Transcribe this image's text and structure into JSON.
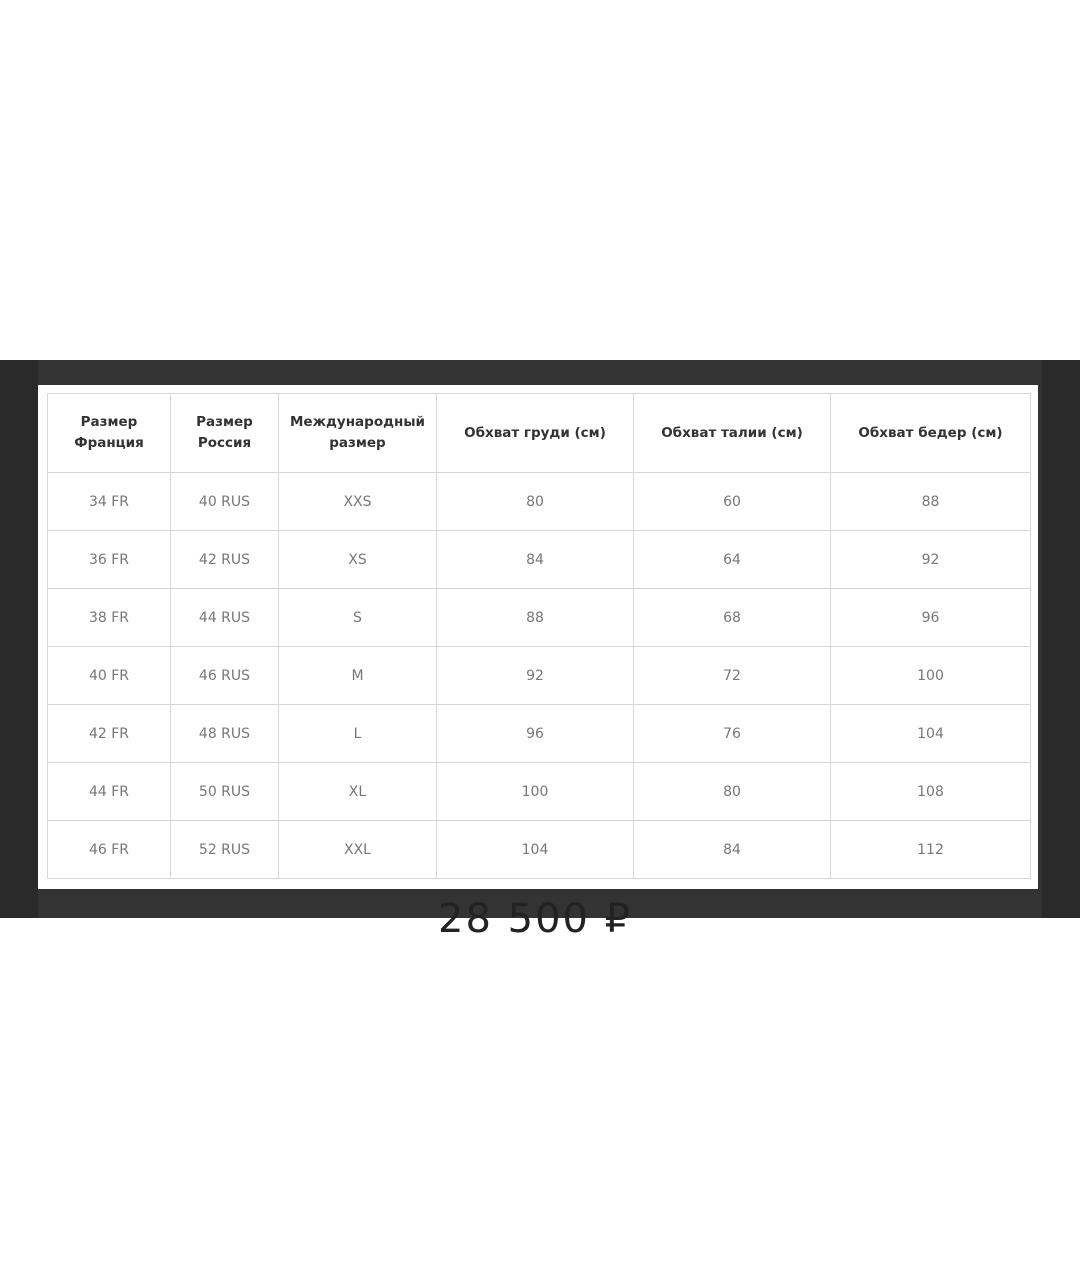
{
  "size_table": {
    "headers": [
      "Размер\nФранция",
      "Размер\nРоссия",
      "Международный\nразмер",
      "Обхват груди (см)",
      "Обхват талии (см)",
      "Обхват бедер (см)"
    ],
    "rows": [
      [
        "34 FR",
        "40 RUS",
        "XXS",
        "80",
        "60",
        "88"
      ],
      [
        "36 FR",
        "42 RUS",
        "XS",
        "84",
        "64",
        "92"
      ],
      [
        "38 FR",
        "44 RUS",
        "S",
        "88",
        "68",
        "96"
      ],
      [
        "40 FR",
        "46 RUS",
        "M",
        "92",
        "72",
        "100"
      ],
      [
        "42 FR",
        "48 RUS",
        "L",
        "96",
        "76",
        "104"
      ],
      [
        "44 FR",
        "50 RUS",
        "XL",
        "100",
        "80",
        "108"
      ],
      [
        "46 FR",
        "52 RUS",
        "XXL",
        "104",
        "84",
        "112"
      ]
    ]
  },
  "price": "28 500 ₽"
}
